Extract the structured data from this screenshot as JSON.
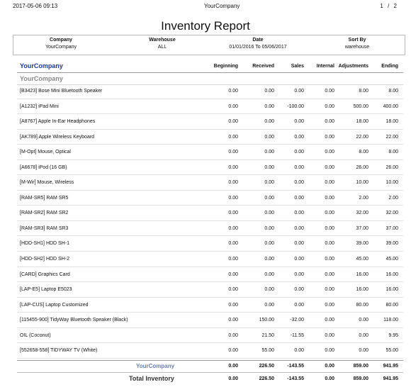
{
  "header": {
    "timestamp": "2017-05-06 09:13",
    "company": "YourCompany",
    "page": "1 / 2"
  },
  "title": "Inventory Report",
  "params": {
    "company_label": "Company",
    "company_value": "YourCompany",
    "warehouse_label": "Warehouse",
    "warehouse_value": "ALL",
    "date_label": "Date",
    "date_value": "01/01/2016 To 05/06/2017",
    "sort_label": "Sort By",
    "sort_value": "warehouse"
  },
  "columns": {
    "first": "YourCompany",
    "beginning": "Beginning",
    "received": "Received",
    "sales": "Sales",
    "internal": "Internal",
    "adjustments": "Adjustments",
    "ending": "Ending"
  },
  "group_label": "YourCompany",
  "rows": [
    {
      "name": "[B3423] Bose Mini Bluetooth Speaker",
      "beginning": "0.00",
      "received": "0.00",
      "sales": "0.00",
      "internal": "0.00",
      "adjustments": "8.00",
      "ending": "8.00"
    },
    {
      "name": "[A1232] iPad Mini",
      "beginning": "0.00",
      "received": "0.00",
      "sales": "-100.00",
      "internal": "0.00",
      "adjustments": "500.00",
      "ending": "400.00"
    },
    {
      "name": "[A8767] Apple In-Ear Headphones",
      "beginning": "0.00",
      "received": "0.00",
      "sales": "0.00",
      "internal": "0.00",
      "adjustments": "18.00",
      "ending": "18.00"
    },
    {
      "name": "[AK789] Apple Wireless Keyboard",
      "beginning": "0.00",
      "received": "0.00",
      "sales": "0.00",
      "internal": "0.00",
      "adjustments": "22.00",
      "ending": "22.00"
    },
    {
      "name": "[M-Opt] Mouse, Optical",
      "beginning": "0.00",
      "received": "0.00",
      "sales": "0.00",
      "internal": "0.00",
      "adjustments": "8.00",
      "ending": "8.00"
    },
    {
      "name": "[A6678] iPod (16 GB)",
      "beginning": "0.00",
      "received": "0.00",
      "sales": "0.00",
      "internal": "0.00",
      "adjustments": "26.00",
      "ending": "26.00"
    },
    {
      "name": "[M-Wir] Mouse, Wireless",
      "beginning": "0.00",
      "received": "0.00",
      "sales": "0.00",
      "internal": "0.00",
      "adjustments": "10.00",
      "ending": "10.00"
    },
    {
      "name": "[RAM-SR5] RAM SR5",
      "beginning": "0.00",
      "received": "0.00",
      "sales": "0.00",
      "internal": "0.00",
      "adjustments": "2.00",
      "ending": "2.00"
    },
    {
      "name": "[RAM-SR2] RAM SR2",
      "beginning": "0.00",
      "received": "0.00",
      "sales": "0.00",
      "internal": "0.00",
      "adjustments": "32.00",
      "ending": "32.00"
    },
    {
      "name": "[RAM-SR3] RAM SR3",
      "beginning": "0.00",
      "received": "0.00",
      "sales": "0.00",
      "internal": "0.00",
      "adjustments": "37.00",
      "ending": "37.00"
    },
    {
      "name": "[HDD-SH1] HDD SH-1",
      "beginning": "0.00",
      "received": "0.00",
      "sales": "0.00",
      "internal": "0.00",
      "adjustments": "39.00",
      "ending": "39.00"
    },
    {
      "name": "[HDD-SH2] HDD SH-2",
      "beginning": "0.00",
      "received": "0.00",
      "sales": "0.00",
      "internal": "0.00",
      "adjustments": "45.00",
      "ending": "45.00"
    },
    {
      "name": "[CARD] Graphics Card",
      "beginning": "0.00",
      "received": "0.00",
      "sales": "0.00",
      "internal": "0.00",
      "adjustments": "16.00",
      "ending": "16.00"
    },
    {
      "name": "[LAP-E5] Laptop E5023",
      "beginning": "0.00",
      "received": "0.00",
      "sales": "0.00",
      "internal": "0.00",
      "adjustments": "16.00",
      "ending": "16.00"
    },
    {
      "name": "[LAP-CUS] Laptop Customized",
      "beginning": "0.00",
      "received": "0.00",
      "sales": "0.00",
      "internal": "0.00",
      "adjustments": "80.00",
      "ending": "80.00"
    },
    {
      "name": "[115455-900] TidyWay Bluetooth Speaker (Black)",
      "beginning": "0.00",
      "received": "150.00",
      "sales": "-32.00",
      "internal": "0.00",
      "adjustments": "0.00",
      "ending": "118.00"
    },
    {
      "name": "OIL (Coconut)",
      "beginning": "0.00",
      "received": "21.50",
      "sales": "-11.55",
      "internal": "0.00",
      "adjustments": "0.00",
      "ending": "9.95"
    },
    {
      "name": "[552658-558] TIDYWAY TV (White)",
      "beginning": "0.00",
      "received": "55.00",
      "sales": "0.00",
      "internal": "0.00",
      "adjustments": "0.00",
      "ending": "55.00"
    }
  ],
  "subtotal": {
    "label": "YourCompany",
    "beginning": "0.00",
    "received": "226.50",
    "sales": "-143.55",
    "internal": "0.00",
    "adjustments": "859.00",
    "ending": "941.95"
  },
  "total": {
    "label": "Total Inventory",
    "beginning": "0.00",
    "received": "226.50",
    "sales": "-143.55",
    "internal": "0.00",
    "adjustments": "859.00",
    "ending": "941.95"
  }
}
